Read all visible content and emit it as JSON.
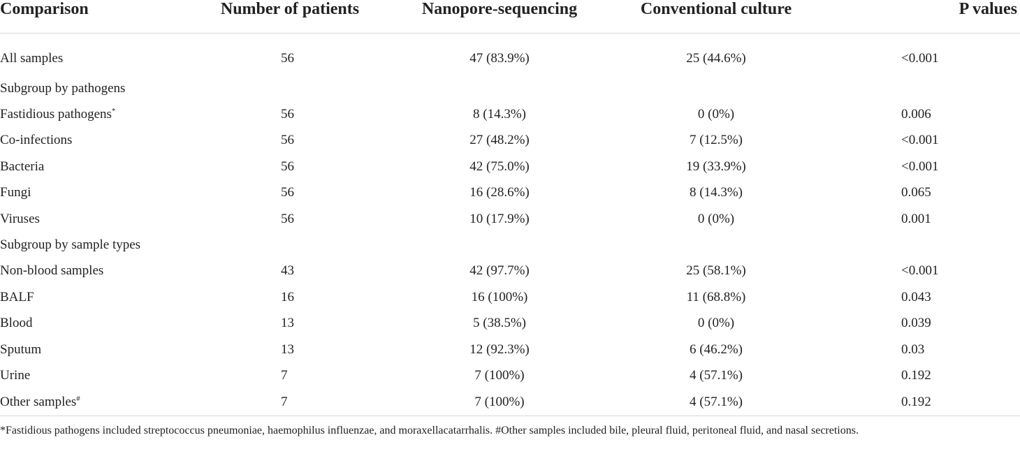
{
  "table": {
    "headers": [
      "Comparison",
      "Number of patients",
      "Nanopore-sequencing",
      "Conventional culture",
      "P values"
    ],
    "rows": [
      {
        "label": "All samples",
        "sup": "",
        "n": "56",
        "nanopore": "47 (83.9%)",
        "culture": "25 (44.6%)",
        "p": "<0.001"
      },
      {
        "label": "Subgroup by pathogens",
        "sup": "",
        "n": "",
        "nanopore": "",
        "culture": "",
        "p": ""
      },
      {
        "label": "Fastidious pathogens",
        "sup": "*",
        "n": "56",
        "nanopore": "8 (14.3%)",
        "culture": "0 (0%)",
        "p": "0.006"
      },
      {
        "label": "Co-infections",
        "sup": "",
        "n": "56",
        "nanopore": "27 (48.2%)",
        "culture": "7 (12.5%)",
        "p": "<0.001"
      },
      {
        "label": "Bacteria",
        "sup": "",
        "n": "56",
        "nanopore": "42 (75.0%)",
        "culture": "19 (33.9%)",
        "p": "<0.001"
      },
      {
        "label": "Fungi",
        "sup": "",
        "n": "56",
        "nanopore": "16 (28.6%)",
        "culture": "8 (14.3%)",
        "p": "0.065"
      },
      {
        "label": "Viruses",
        "sup": "",
        "n": "56",
        "nanopore": "10 (17.9%)",
        "culture": "0 (0%)",
        "p": "0.001"
      },
      {
        "label": "Subgroup by sample types",
        "sup": "",
        "n": "",
        "nanopore": "",
        "culture": "",
        "p": ""
      },
      {
        "label": "Non-blood samples",
        "sup": "",
        "n": "43",
        "nanopore": "42 (97.7%)",
        "culture": "25 (58.1%)",
        "p": "<0.001"
      },
      {
        "label": "BALF",
        "sup": "",
        "n": "16",
        "nanopore": "16 (100%)",
        "culture": "11 (68.8%)",
        "p": "0.043"
      },
      {
        "label": "Blood",
        "sup": "",
        "n": "13",
        "nanopore": "5 (38.5%)",
        "culture": "0 (0%)",
        "p": "0.039"
      },
      {
        "label": "Sputum",
        "sup": "",
        "n": "13",
        "nanopore": "12 (92.3%)",
        "culture": "6 (46.2%)",
        "p": "0.03"
      },
      {
        "label": "Urine",
        "sup": "",
        "n": "7",
        "nanopore": "7 (100%)",
        "culture": "4 (57.1%)",
        "p": "0.192"
      },
      {
        "label": "Other samples",
        "sup": "#",
        "n": "7",
        "nanopore": "7 (100%)",
        "culture": "4 (57.1%)",
        "p": "0.192"
      }
    ]
  },
  "footnote": "*Fastidious pathogens included streptococcus pneumoniae, haemophilus influenzae, and moraxellacatarrhalis. #Other samples included bile, pleural fluid, peritoneal fluid, and nasal secretions."
}
